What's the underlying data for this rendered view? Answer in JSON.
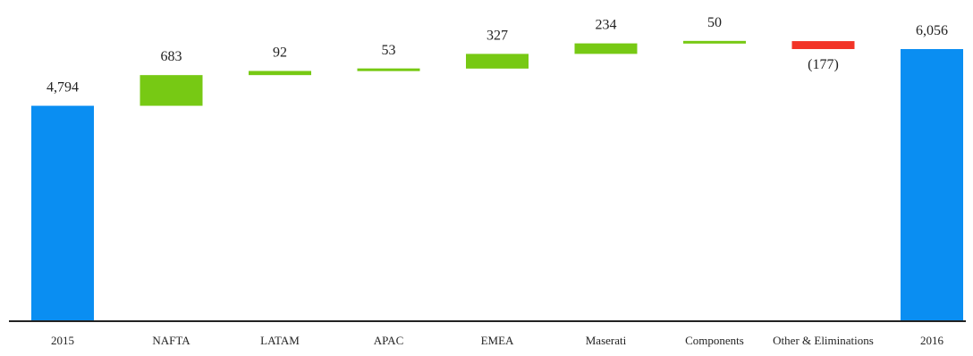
{
  "chart_data": {
    "type": "bar",
    "subtype": "waterfall",
    "title": "",
    "xlabel": "",
    "ylabel": "",
    "ylim": [
      0,
      6400
    ],
    "grid": false,
    "legend": "none",
    "colors": {
      "total": "#0a8ef2",
      "increase": "#77c914",
      "decrease": "#f23427",
      "axis": "#222222"
    },
    "bars": [
      {
        "category": "2015",
        "value": 4794,
        "kind": "total",
        "label": "4,794"
      },
      {
        "category": "NAFTA",
        "value": 683,
        "kind": "increase",
        "label": "683"
      },
      {
        "category": "LATAM",
        "value": 92,
        "kind": "increase",
        "label": "92"
      },
      {
        "category": "APAC",
        "value": 53,
        "kind": "increase",
        "label": "53"
      },
      {
        "category": "EMEA",
        "value": 327,
        "kind": "increase",
        "label": "327"
      },
      {
        "category": "Maserati",
        "value": 234,
        "kind": "increase",
        "label": "234"
      },
      {
        "category": "Components",
        "value": 50,
        "kind": "increase",
        "label": "50"
      },
      {
        "category": "Other & Eliminations",
        "value": -177,
        "kind": "decrease",
        "label": "(177)"
      },
      {
        "category": "2016",
        "value": 6056,
        "kind": "total",
        "label": "6,056"
      }
    ]
  }
}
